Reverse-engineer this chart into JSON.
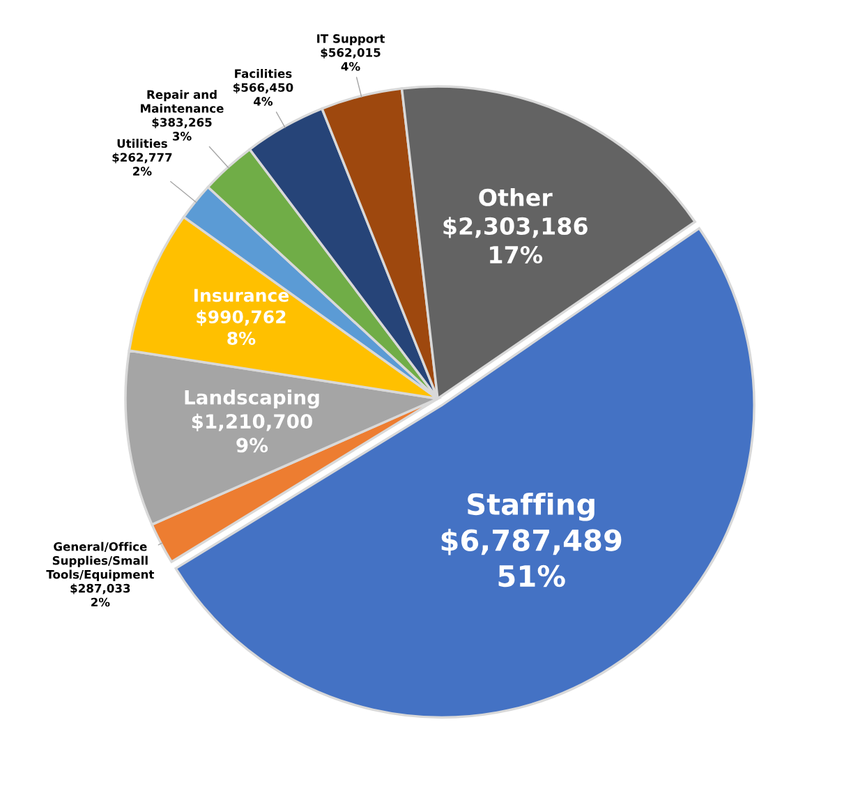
{
  "chart_data": {
    "type": "pie",
    "categories": [
      "Staffing",
      "General/Office\nSupplies/Small\nTools/Equipment",
      "Landscaping",
      "Insurance",
      "Utilities",
      "Repair and\nMaintenance",
      "Facilities",
      "IT Support",
      "Other"
    ],
    "values": [
      6787489,
      287033,
      1210700,
      990762,
      262777,
      383265,
      566450,
      562015,
      2303186
    ],
    "value_labels": [
      "$6,787,489\n51%",
      "$287,033\n2%",
      "$1,210,700\n9%",
      "$990,762\n8%",
      "$262,777\n2%",
      "$383,265\n3%",
      "$566,450\n4%",
      "$562,015\n4%",
      "$2,303,186\n17%"
    ],
    "colors": [
      "#4472c4",
      "#ed7d31",
      "#a5a5a5",
      "#ffc000",
      "#5b9bd5",
      "#70ad47",
      "#264478",
      "#9e480e",
      "#636363"
    ]
  }
}
